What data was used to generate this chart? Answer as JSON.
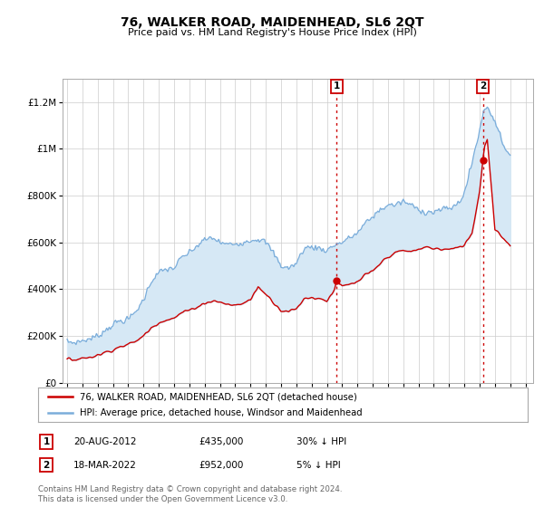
{
  "title": "76, WALKER ROAD, MAIDENHEAD, SL6 2QT",
  "subtitle": "Price paid vs. HM Land Registry's House Price Index (HPI)",
  "legend_line1": "76, WALKER ROAD, MAIDENHEAD, SL6 2QT (detached house)",
  "legend_line2": "HPI: Average price, detached house, Windsor and Maidenhead",
  "annotation1_label": "1",
  "annotation1_date": "20-AUG-2012",
  "annotation1_price": "£435,000",
  "annotation1_hpi": "30% ↓ HPI",
  "annotation1_year": 2012.64,
  "annotation1_value": 435000,
  "annotation2_label": "2",
  "annotation2_date": "18-MAR-2022",
  "annotation2_price": "£952,000",
  "annotation2_hpi": "5% ↓ HPI",
  "annotation2_year": 2022.21,
  "annotation2_value": 952000,
  "red_color": "#cc0000",
  "blue_color": "#7aaddb",
  "fill_color": "#d6e8f5",
  "annotation_color": "#cc0000",
  "background_color": "#ffffff",
  "grid_color": "#cccccc",
  "footer_text": "Contains HM Land Registry data © Crown copyright and database right 2024.\nThis data is licensed under the Open Government Licence v3.0.",
  "ylim": [
    0,
    1300000
  ],
  "yticks": [
    0,
    200000,
    400000,
    600000,
    800000,
    1000000,
    1200000
  ],
  "xlim_start": 1994.7,
  "xlim_end": 2025.5
}
